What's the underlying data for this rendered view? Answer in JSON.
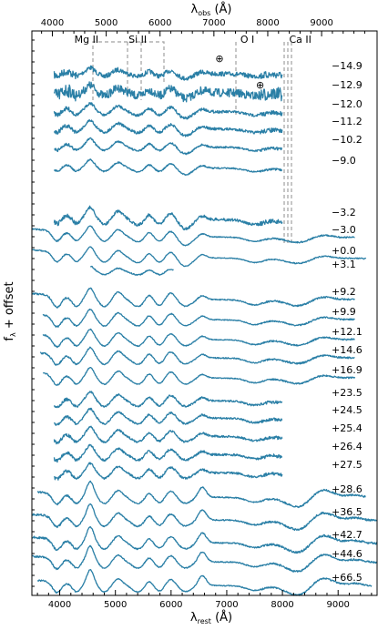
{
  "chart_data": {
    "type": "line",
    "xlabel_bottom": "λ",
    "xlabel_bottom_sub": "rest",
    "xlabel_bottom_unit": " (Å)",
    "xlabel_top": "λ",
    "xlabel_top_sub": "obs",
    "xlabel_top_unit": " (Å)",
    "ylabel": "f",
    "ylabel_sub": "λ",
    "ylabel_rest": " + offset",
    "xlim_rest": [
      3500,
      9700
    ],
    "xlim_obs": [
      3620,
      10030
    ],
    "bottom_ticks": [
      "4000",
      "5000",
      "6000",
      "7000",
      "8000",
      "9000"
    ],
    "top_ticks": [
      "4000",
      "5000",
      "6000",
      "7000",
      "8000",
      "9000"
    ],
    "line_color": "#2a7fa6",
    "grey_color": "#a0a0a0",
    "phases": [
      "−14.9",
      "−12.9",
      "−12.0",
      "−11.2",
      "−10.2",
      "−9.0",
      "−3.2",
      "−3.0",
      "+0.0",
      "+3.1",
      "+9.2",
      "+9.9",
      "+12.1",
      "+14.6",
      "+16.9",
      "+23.5",
      "+24.5",
      "+25.4",
      "+26.4",
      "+27.5",
      "+28.6",
      "+36.5",
      "+42.7",
      "+44.6",
      "+66.5"
    ],
    "spectra_range_rest": [
      [
        3900,
        8000
      ],
      [
        3900,
        8000
      ],
      [
        3900,
        8000
      ],
      [
        3900,
        8000
      ],
      [
        3900,
        8000
      ],
      [
        3900,
        8000
      ],
      [
        3900,
        8000
      ],
      [
        3500,
        9300
      ],
      [
        3500,
        9500
      ],
      [
        4550,
        6050
      ],
      [
        3500,
        9300
      ],
      [
        3700,
        9300
      ],
      [
        3700,
        9300
      ],
      [
        3650,
        9300
      ],
      [
        3700,
        9300
      ],
      [
        3900,
        8000
      ],
      [
        3900,
        8000
      ],
      [
        3900,
        8000
      ],
      [
        3900,
        8000
      ],
      [
        3900,
        8000
      ],
      [
        3600,
        9500
      ],
      [
        3500,
        9700
      ],
      [
        3500,
        9700
      ],
      [
        3500,
        9700
      ],
      [
        3600,
        9600
      ]
    ],
    "line_ids": [
      {
        "label": "Mg II",
        "rest": 4480
      },
      {
        "label": "Si II",
        "rest": 5400
      },
      {
        "label": "O I",
        "rest": 7370
      },
      {
        "label": "Ca II",
        "rest": 8320
      }
    ],
    "telluric_symbol": "⊕",
    "telluric_rest": [
      6870,
      7600
    ]
  }
}
